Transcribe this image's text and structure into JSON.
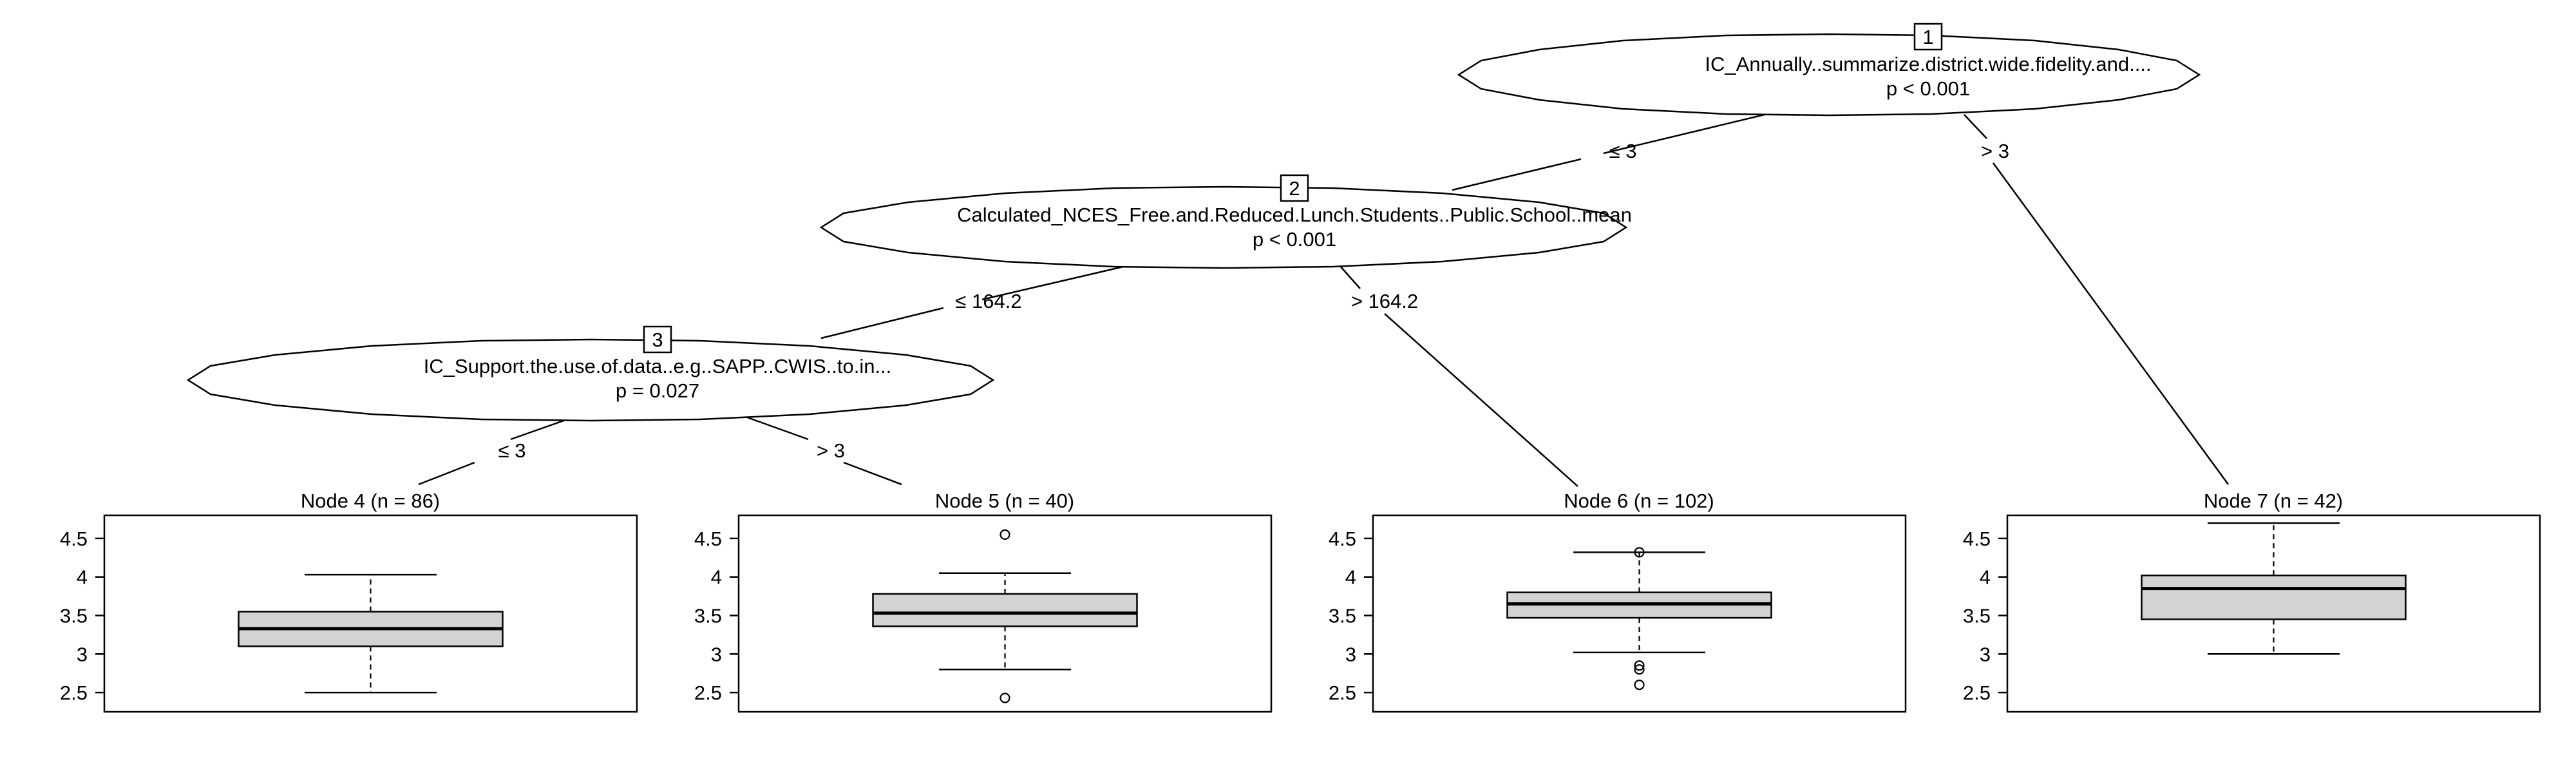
{
  "tree": {
    "inner_nodes": [
      {
        "id": "1",
        "variable": "IC_Annually..summarize.district.wide.fidelity.and....",
        "p_value": "p < 0.001"
      },
      {
        "id": "2",
        "variable": "Calculated_NCES_Free.and.Reduced.Lunch.Students..Public.School..mean",
        "p_value": "p < 0.001"
      },
      {
        "id": "3",
        "variable": "IC_Support.the.use.of.data..e.g..SAPP..CWIS..to.in...",
        "p_value": "p = 0.027"
      }
    ],
    "edges": [
      {
        "from": "1",
        "to": "2",
        "label": "≤ 3"
      },
      {
        "from": "1",
        "to": "7",
        "label": "> 3"
      },
      {
        "from": "2",
        "to": "3",
        "label": "≤ 164.2"
      },
      {
        "from": "2",
        "to": "6",
        "label": "> 164.2"
      },
      {
        "from": "3",
        "to": "4",
        "label": "≤ 3"
      },
      {
        "from": "3",
        "to": "5",
        "label": "> 3"
      }
    ],
    "terminal_nodes": [
      {
        "id": "4",
        "title": "Node 4 (n = 86)",
        "box": {
          "whisker_low": 2.5,
          "q1": 3.1,
          "median": 3.33,
          "q3": 3.55,
          "whisker_high": 4.03,
          "outliers": []
        }
      },
      {
        "id": "5",
        "title": "Node 5 (n = 40)",
        "box": {
          "whisker_low": 2.8,
          "q1": 3.36,
          "median": 3.53,
          "q3": 3.78,
          "whisker_high": 4.05,
          "outliers": [
            4.55,
            2.43
          ]
        }
      },
      {
        "id": "6",
        "title": "Node 6 (n = 102)",
        "box": {
          "whisker_low": 3.02,
          "q1": 3.47,
          "median": 3.65,
          "q3": 3.8,
          "whisker_high": 4.32,
          "outliers": [
            4.32,
            2.85,
            2.8,
            2.6
          ]
        }
      },
      {
        "id": "7",
        "title": "Node 7 (n = 42)",
        "box": {
          "whisker_low": 3.0,
          "q1": 3.45,
          "median": 3.85,
          "q3": 4.02,
          "whisker_high": 4.7,
          "outliers": []
        }
      }
    ],
    "y_axis": {
      "ticks": [
        "4.5",
        "4",
        "3.5",
        "3",
        "2.5"
      ],
      "range": [
        2.25,
        4.8
      ]
    },
    "box_fill": "#d3d3d3"
  }
}
